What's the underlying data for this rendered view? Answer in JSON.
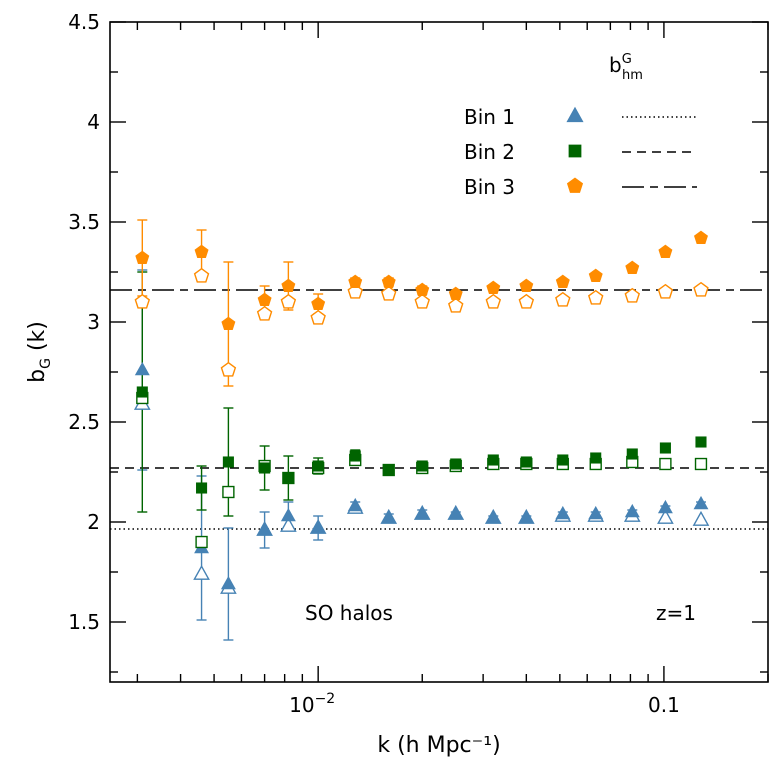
{
  "chart_data": {
    "type": "scatter",
    "xlabel": "k (h Mpc⁻¹)",
    "ylabel": "b_G (k)",
    "xscale": "log",
    "xlim": [
      0.0025,
      0.2
    ],
    "ylim": [
      1.2,
      4.5
    ],
    "grid": false,
    "legend_title": "b_hm^G",
    "legend_placement": "top-right",
    "annotations": [
      "SO halos",
      "z=1"
    ],
    "x_tick_labels": [
      {
        "value": 0.01,
        "base": "10",
        "exp": "−2"
      },
      {
        "value": 0.1,
        "text": "0.1"
      }
    ],
    "y_tick_labels": [
      "1.5",
      "2",
      "2.5",
      "3",
      "3.5",
      "4",
      "4.5"
    ],
    "y_ticks": [
      1.5,
      2,
      2.5,
      3,
      3.5,
      4,
      4.5
    ],
    "colors": {
      "bin1": "#4682b4",
      "bin2": "#006400",
      "bin3": "#ff8c00"
    },
    "k": [
      0.0031,
      0.0046,
      0.0055,
      0.007,
      0.0082,
      0.01,
      0.0128,
      0.016,
      0.02,
      0.025,
      0.0321,
      0.04,
      0.051,
      0.0635,
      0.081,
      0.101,
      0.128
    ],
    "series": [
      {
        "name": "Bin 1",
        "marker": "triangle",
        "color": "#4682b4",
        "hline": 1.965,
        "hline_style": "dotted",
        "filled": [
          2.76,
          1.87,
          1.69,
          1.96,
          2.03,
          1.97,
          2.08,
          2.02,
          2.04,
          2.04,
          2.02,
          2.02,
          2.04,
          2.04,
          2.05,
          2.07,
          2.09
        ],
        "filled_err": [
          0.5,
          0.36,
          0.28,
          0.09,
          0.07,
          0.06,
          0.02,
          0.02,
          0.02,
          0.01,
          0.01,
          0.01,
          0.01,
          0.01,
          0.01,
          0.01,
          0.01
        ],
        "open": [
          2.59,
          1.74,
          1.67,
          1.96,
          1.98,
          1.97,
          2.07,
          2.02,
          2.04,
          2.04,
          2.02,
          2.02,
          2.03,
          2.03,
          2.03,
          2.02,
          2.01
        ]
      },
      {
        "name": "Bin 2",
        "marker": "square",
        "color": "#006400",
        "hline": 2.27,
        "hline_style": "short-dashed",
        "filled": [
          2.65,
          2.17,
          2.3,
          2.27,
          2.22,
          2.28,
          2.33,
          2.26,
          2.28,
          2.29,
          2.31,
          2.3,
          2.31,
          2.32,
          2.34,
          2.37,
          2.4
        ],
        "filled_err": [
          0.6,
          0.11,
          0.27,
          0.11,
          0.11,
          0.04,
          0.03,
          0.02,
          0.02,
          0.01,
          0.01,
          0.01,
          0.01,
          0.01,
          0.01,
          0.01,
          0.01
        ],
        "open": [
          2.62,
          1.9,
          2.15,
          2.28,
          2.22,
          2.27,
          2.31,
          2.26,
          2.27,
          2.28,
          2.29,
          2.29,
          2.29,
          2.29,
          2.3,
          2.29,
          2.29
        ]
      },
      {
        "name": "Bin 3",
        "marker": "pentagon",
        "color": "#ff8c00",
        "hline": 3.16,
        "hline_style": "long-dashed",
        "filled": [
          3.32,
          3.35,
          2.99,
          3.11,
          3.18,
          3.09,
          3.2,
          3.2,
          3.16,
          3.14,
          3.17,
          3.18,
          3.2,
          3.23,
          3.27,
          3.35,
          3.42
        ],
        "filled_err": [
          0.19,
          0.11,
          0.31,
          0.07,
          0.12,
          0.05,
          0.02,
          0.02,
          0.02,
          0.01,
          0.01,
          0.01,
          0.01,
          0.01,
          0.01,
          0.01,
          0.01
        ],
        "open": [
          3.1,
          3.23,
          2.76,
          3.04,
          3.1,
          3.02,
          3.15,
          3.14,
          3.1,
          3.08,
          3.1,
          3.1,
          3.11,
          3.12,
          3.13,
          3.15,
          3.16
        ]
      }
    ]
  }
}
